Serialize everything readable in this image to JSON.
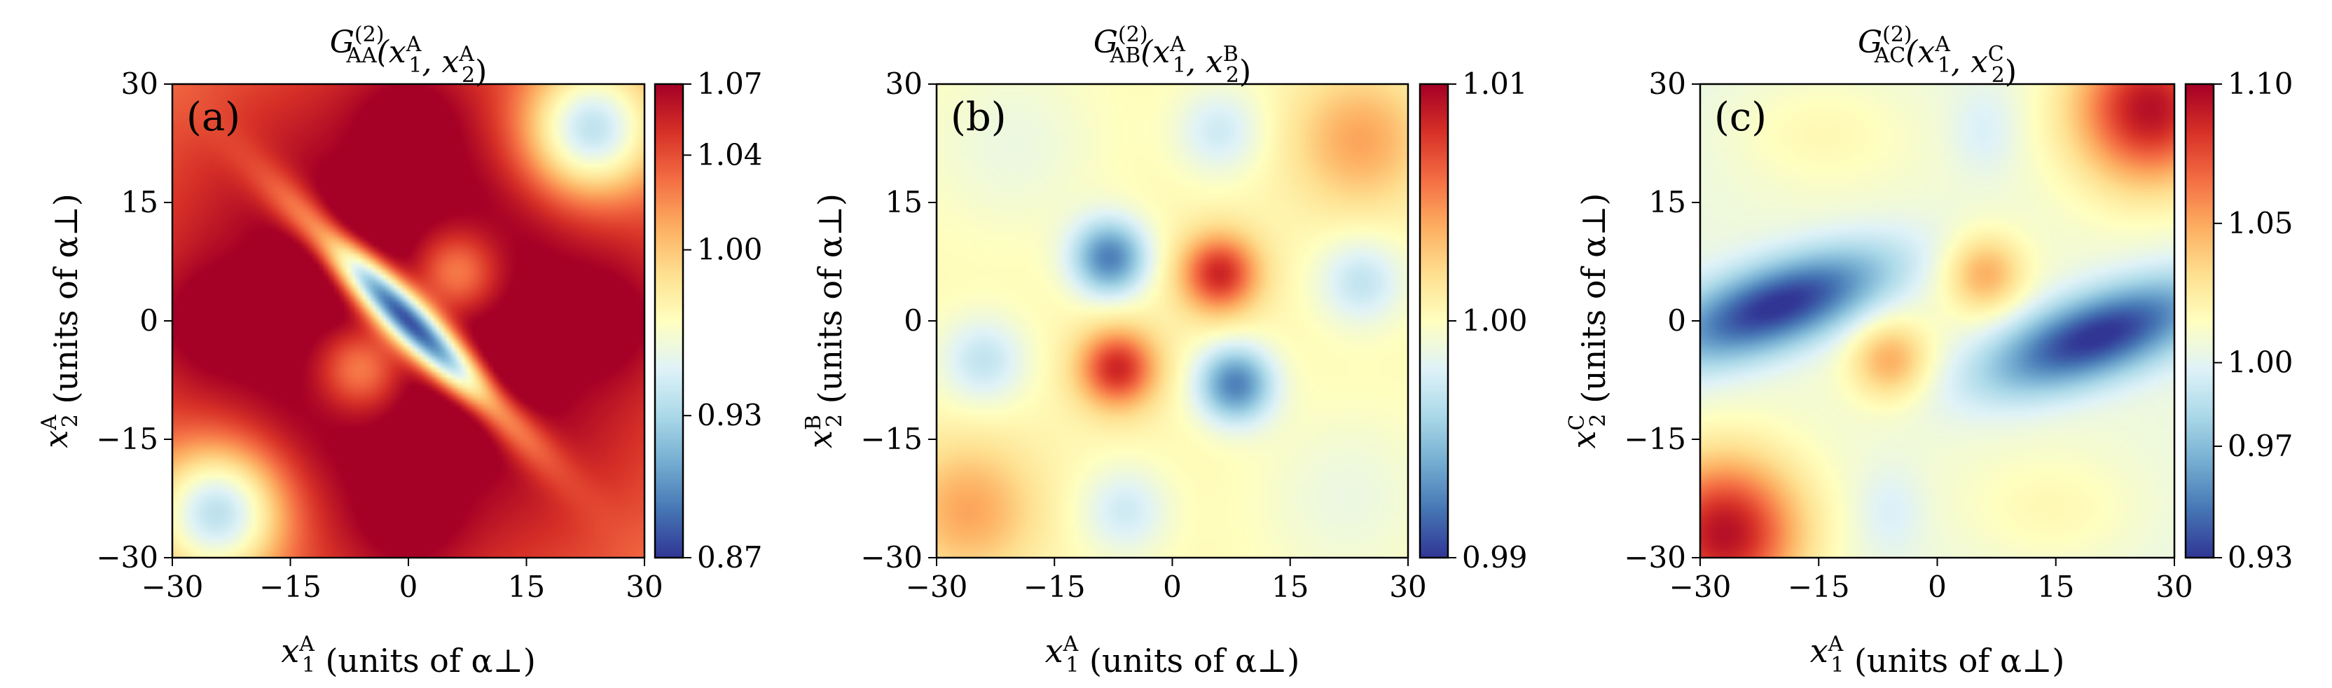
{
  "figure": {
    "colormap": [
      "#313695",
      "#4575b4",
      "#74add1",
      "#abd9e9",
      "#e0f3f8",
      "#ffffbf",
      "#fee090",
      "#fdae61",
      "#f46d43",
      "#d73027",
      "#a50026"
    ]
  },
  "chart_data": [
    {
      "type": "heatmap",
      "panel": "(a)",
      "title": {
        "base": "G",
        "sup": "(2)",
        "sub": "AA",
        "args": "(x",
        "a1sub": "1",
        "a1sup": "A",
        "mid": ", x",
        "a2sub": "2",
        "a2sup": "A",
        "close": ")"
      },
      "xlabel": {
        "var": "x",
        "sub": "1",
        "sup": "A",
        "text": " (units of α⊥)"
      },
      "ylabel": {
        "var": "x",
        "sub": "2",
        "sup": "A",
        "text": " (units of α⊥)"
      },
      "x_ticks": [
        "−30",
        "−15",
        "0",
        "15",
        "30"
      ],
      "y_ticks": [
        "−30",
        "−15",
        "0",
        "15",
        "30"
      ],
      "xlim": [
        -30,
        30
      ],
      "ylim": [
        -30,
        30
      ],
      "colorbar": {
        "min": 0.87,
        "max": 1.07,
        "ticks": [
          0.87,
          0.93,
          1.0,
          1.04,
          1.07
        ],
        "tick_labels": [
          "0.87",
          "0.93",
          "1.00",
          "1.04",
          "1.07"
        ]
      },
      "features": [
        {
          "x": 0,
          "y": 0,
          "sx": 30,
          "sy": 30,
          "rho": 0,
          "amp": 0.09
        },
        {
          "x": 0,
          "y": 0,
          "sx": 9,
          "sy": 9,
          "rho": -0.95,
          "amp": -0.2
        },
        {
          "x": -24,
          "y": -24,
          "sx": 6,
          "sy": 6,
          "rho": 0,
          "amp": -0.11
        },
        {
          "x": 23,
          "y": 24,
          "sx": 6,
          "sy": 6,
          "rho": 0,
          "amp": -0.11
        },
        {
          "x": -6,
          "y": -6,
          "sx": 4,
          "sy": 4,
          "rho": 0,
          "amp": -0.06
        },
        {
          "x": 6,
          "y": 6,
          "sx": 4,
          "sy": 4,
          "rho": 0,
          "amp": -0.06
        },
        {
          "x": -10,
          "y": 10,
          "sx": 4,
          "sy": 4,
          "rho": 0,
          "amp": 0.03
        },
        {
          "x": 10,
          "y": -10,
          "sx": 4,
          "sy": 4,
          "rho": 0,
          "amp": 0.03
        },
        {
          "x": -26,
          "y": 0,
          "sx": 5,
          "sy": 5,
          "rho": 0,
          "amp": 0.02
        },
        {
          "x": 0,
          "y": -26,
          "sx": 5,
          "sy": 5,
          "rho": 0,
          "amp": 0.02
        },
        {
          "x": 26,
          "y": 0,
          "sx": 5,
          "sy": 5,
          "rho": 0,
          "amp": 0.02
        },
        {
          "x": 0,
          "y": 26,
          "sx": 5,
          "sy": 5,
          "rho": 0,
          "amp": 0.02
        }
      ]
    },
    {
      "type": "heatmap",
      "panel": "(b)",
      "title": {
        "base": "G",
        "sup": "(2)",
        "sub": "AB",
        "args": "(x",
        "a1sub": "1",
        "a1sup": "A",
        "mid": ", x",
        "a2sub": "2",
        "a2sup": "B",
        "close": ")"
      },
      "xlabel": {
        "var": "x",
        "sub": "1",
        "sup": "A",
        "text": " (units of α⊥)"
      },
      "ylabel": {
        "var": "x",
        "sub": "2",
        "sup": "B",
        "text": " (units of α⊥)"
      },
      "x_ticks": [
        "−30",
        "−15",
        "0",
        "15",
        "30"
      ],
      "y_ticks": [
        "−30",
        "−15",
        "0",
        "15",
        "30"
      ],
      "xlim": [
        -30,
        30
      ],
      "ylim": [
        -30,
        30
      ],
      "colorbar": {
        "min": 0.99,
        "max": 1.01,
        "ticks": [
          0.99,
          1.0,
          1.01
        ],
        "tick_labels": [
          "0.99",
          "1.00",
          "1.01"
        ]
      },
      "features": [
        {
          "x": 0,
          "y": 0,
          "sx": 30,
          "sy": 30,
          "rho": 0,
          "amp": 0.0005
        },
        {
          "x": -7,
          "y": -6,
          "sx": 3.5,
          "sy": 3.5,
          "rho": 0,
          "amp": 0.008
        },
        {
          "x": 6,
          "y": 6,
          "sx": 3.5,
          "sy": 3.5,
          "rho": 0,
          "amp": 0.008
        },
        {
          "x": -8,
          "y": 8,
          "sx": 3.5,
          "sy": 3.5,
          "rho": 0,
          "amp": -0.008
        },
        {
          "x": 8,
          "y": -8,
          "sx": 3.5,
          "sy": 3.5,
          "rho": 0,
          "amp": -0.008
        },
        {
          "x": -26,
          "y": -24,
          "sx": 6,
          "sy": 6,
          "rho": 0,
          "amp": 0.004
        },
        {
          "x": 24,
          "y": 23,
          "sx": 6,
          "sy": 6,
          "rho": 0,
          "amp": 0.004
        },
        {
          "x": -24,
          "y": -5,
          "sx": 4,
          "sy": 4,
          "rho": 0,
          "amp": -0.0035
        },
        {
          "x": 24,
          "y": 5,
          "sx": 4,
          "sy": 4,
          "rho": 0,
          "amp": -0.0035
        },
        {
          "x": -6,
          "y": -24,
          "sx": 4,
          "sy": 4,
          "rho": 0,
          "amp": -0.003
        },
        {
          "x": 6,
          "y": 24,
          "sx": 4,
          "sy": 4,
          "rho": 0,
          "amp": -0.003
        },
        {
          "x": -20,
          "y": 22,
          "sx": 8,
          "sy": 8,
          "rho": 0,
          "amp": -0.0015
        },
        {
          "x": 22,
          "y": -22,
          "sx": 8,
          "sy": 8,
          "rho": 0,
          "amp": -0.0015
        }
      ]
    },
    {
      "type": "heatmap",
      "panel": "(c)",
      "title": {
        "base": "G",
        "sup": "(2)",
        "sub": "AC",
        "args": "(x",
        "a1sub": "1",
        "a1sup": "A",
        "mid": ", x",
        "a2sub": "2",
        "a2sup": "C",
        "close": ")"
      },
      "xlabel": {
        "var": "x",
        "sub": "1",
        "sup": "A",
        "text": " (units of α⊥)"
      },
      "ylabel": {
        "var": "x",
        "sub": "2",
        "sup": "C",
        "text": " (units of α⊥)"
      },
      "x_ticks": [
        "−30",
        "−15",
        "0",
        "15",
        "30"
      ],
      "y_ticks": [
        "−30",
        "−15",
        "0",
        "15",
        "30"
      ],
      "xlim": [
        -30,
        30
      ],
      "ylim": [
        -30,
        30
      ],
      "colorbar": {
        "min": 0.93,
        "max": 1.1,
        "ticks": [
          0.93,
          0.97,
          1.0,
          1.05,
          1.1
        ],
        "tick_labels": [
          "0.93",
          "0.97",
          "1.00",
          "1.05",
          "1.10"
        ]
      },
      "features": [
        {
          "x": 0,
          "y": 0,
          "sx": 30,
          "sy": 30,
          "rho": 0,
          "amp": 0.01
        },
        {
          "x": -27,
          "y": -27,
          "sx": 7,
          "sy": 7,
          "rho": 0,
          "amp": 0.09
        },
        {
          "x": 27,
          "y": 27,
          "sx": 7,
          "sy": 7,
          "rho": 0,
          "amp": 0.09
        },
        {
          "x": -6,
          "y": -5,
          "sx": 3.5,
          "sy": 3.5,
          "rho": 0,
          "amp": 0.04
        },
        {
          "x": 6,
          "y": 6,
          "sx": 3.5,
          "sy": 3.5,
          "rho": 0,
          "amp": 0.04
        },
        {
          "x": -20,
          "y": 2,
          "sx": 10,
          "sy": 5,
          "rho": 0.6,
          "amp": -0.08
        },
        {
          "x": 20,
          "y": -2,
          "sx": 10,
          "sy": 5,
          "rho": 0.6,
          "amp": -0.08
        },
        {
          "x": -15,
          "y": 24,
          "sx": 8,
          "sy": 5,
          "rho": 0,
          "amp": 0.012
        },
        {
          "x": 15,
          "y": -24,
          "sx": 8,
          "sy": 5,
          "rho": 0,
          "amp": 0.012
        },
        {
          "x": -6,
          "y": -24,
          "sx": 3,
          "sy": 4,
          "rho": 0,
          "amp": -0.012
        },
        {
          "x": 6,
          "y": 24,
          "sx": 3,
          "sy": 4,
          "rho": 0,
          "amp": -0.012
        }
      ]
    }
  ]
}
